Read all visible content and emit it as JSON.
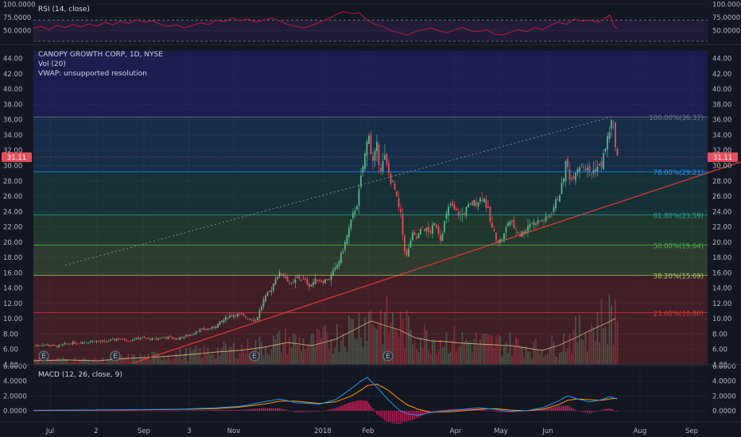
{
  "colors": {
    "background": "#131722",
    "up": "#53b987",
    "down": "#eb4d5c",
    "trendline": "#e53935",
    "rsi_line": "#b71c3a",
    "macd_line": "#2196f3",
    "signal_line": "#ff9800",
    "price_badge": "#eb4d5c"
  },
  "chart_data": [
    {
      "type": "line",
      "panel": "rsi",
      "title": "RSI (14, close)",
      "yticks": [
        "100.0000",
        "75.0000",
        "50.0000"
      ],
      "ylim": [
        30,
        105
      ],
      "band_levels": [
        70,
        30
      ],
      "points": [
        [
          0,
          55
        ],
        [
          10,
          58
        ],
        [
          20,
          52
        ],
        [
          30,
          60
        ],
        [
          40,
          56
        ],
        [
          50,
          62
        ],
        [
          60,
          57
        ],
        [
          70,
          63
        ],
        [
          80,
          59
        ],
        [
          90,
          66
        ],
        [
          100,
          61
        ],
        [
          110,
          68
        ],
        [
          120,
          64
        ],
        [
          130,
          71
        ],
        [
          140,
          66
        ],
        [
          150,
          69
        ],
        [
          160,
          62
        ],
        [
          170,
          58
        ],
        [
          180,
          61
        ],
        [
          190,
          55
        ],
        [
          200,
          60
        ],
        [
          210,
          65
        ],
        [
          220,
          62
        ],
        [
          230,
          70
        ],
        [
          240,
          67
        ],
        [
          250,
          74
        ],
        [
          260,
          69
        ],
        [
          270,
          72
        ],
        [
          280,
          66
        ],
        [
          290,
          70
        ],
        [
          300,
          74
        ],
        [
          310,
          68
        ],
        [
          320,
          62
        ],
        [
          330,
          58
        ],
        [
          340,
          55
        ],
        [
          350,
          60
        ],
        [
          360,
          66
        ],
        [
          370,
          72
        ],
        [
          380,
          80
        ],
        [
          390,
          86
        ],
        [
          400,
          82
        ],
        [
          410,
          84
        ],
        [
          420,
          70
        ],
        [
          430,
          62
        ],
        [
          440,
          58
        ],
        [
          450,
          50
        ],
        [
          460,
          46
        ],
        [
          470,
          42
        ],
        [
          480,
          48
        ],
        [
          490,
          52
        ],
        [
          500,
          55
        ],
        [
          510,
          50
        ],
        [
          520,
          46
        ],
        [
          530,
          52
        ],
        [
          540,
          56
        ],
        [
          550,
          50
        ],
        [
          560,
          48
        ],
        [
          570,
          52
        ],
        [
          580,
          44
        ],
        [
          590,
          42
        ],
        [
          600,
          47
        ],
        [
          610,
          52
        ],
        [
          620,
          48
        ],
        [
          630,
          56
        ],
        [
          640,
          52
        ],
        [
          650,
          60
        ],
        [
          660,
          66
        ],
        [
          670,
          62
        ],
        [
          680,
          72
        ],
        [
          690,
          68
        ],
        [
          700,
          70
        ],
        [
          710,
          66
        ],
        [
          720,
          74
        ],
        [
          725,
          80
        ],
        [
          730,
          60
        ],
        [
          735,
          53
        ]
      ]
    },
    {
      "type": "candlestick",
      "panel": "price",
      "title": "CANOPY GROWTH CORP, 1D, NYSE",
      "ylim": [
        4,
        45
      ],
      "yticks": [
        44,
        42,
        40,
        38,
        36,
        34,
        32,
        30,
        28,
        26,
        24,
        22,
        20,
        18,
        16,
        14,
        12,
        10,
        8,
        6,
        4
      ],
      "ytick_labels": [
        "44.00",
        "42.00",
        "40.00",
        "38.00",
        "36.00",
        "34.00",
        "32.00",
        "30.00",
        "28.00",
        "26.00",
        "24.00",
        "22.00",
        "20.00",
        "18.00",
        "16.00",
        "14.00",
        "12.00",
        "10.00",
        "8.00",
        "6.00",
        "4.00"
      ],
      "last_price_label": "31.11",
      "last_price": 31.11,
      "close_path": [
        [
          0,
          6.5
        ],
        [
          15,
          6.6
        ],
        [
          30,
          6.4
        ],
        [
          45,
          6.8
        ],
        [
          60,
          6.9
        ],
        [
          75,
          7.1
        ],
        [
          90,
          7.0
        ],
        [
          105,
          7.4
        ],
        [
          120,
          7.2
        ],
        [
          135,
          7.5
        ],
        [
          150,
          7.3
        ],
        [
          165,
          7.6
        ],
        [
          180,
          7.4
        ],
        [
          195,
          7.8
        ],
        [
          205,
          8.4
        ],
        [
          215,
          8.6
        ],
        [
          225,
          8.8
        ],
        [
          235,
          9.5
        ],
        [
          245,
          10.3
        ],
        [
          255,
          10.6
        ],
        [
          262,
          10.4
        ],
        [
          270,
          10.1
        ],
        [
          280,
          9.8
        ],
        [
          290,
          12.5
        ],
        [
          300,
          14.0
        ],
        [
          305,
          15.5
        ],
        [
          312,
          16.0
        ],
        [
          318,
          15.3
        ],
        [
          325,
          14.3
        ],
        [
          332,
          15.4
        ],
        [
          340,
          15.1
        ],
        [
          348,
          14.3
        ],
        [
          356,
          15.2
        ],
        [
          364,
          14.9
        ],
        [
          372,
          15.3
        ],
        [
          380,
          16.5
        ],
        [
          388,
          18.5
        ],
        [
          395,
          21.0
        ],
        [
          402,
          23.5
        ],
        [
          408,
          25.5
        ],
        [
          413,
          29.0
        ],
        [
          418,
          32.0
        ],
        [
          422,
          34.5
        ],
        [
          426,
          30.0
        ],
        [
          432,
          32.5
        ],
        [
          436,
          29.5
        ],
        [
          442,
          31.0
        ],
        [
          448,
          28.5
        ],
        [
          454,
          27.0
        ],
        [
          458,
          25.0
        ],
        [
          462,
          23.5
        ],
        [
          466,
          19.5
        ],
        [
          470,
          18.0
        ],
        [
          476,
          21.0
        ],
        [
          482,
          20.5
        ],
        [
          490,
          22.0
        ],
        [
          498,
          21.2
        ],
        [
          506,
          22.5
        ],
        [
          512,
          20.5
        ],
        [
          518,
          23.0
        ],
        [
          524,
          25.0
        ],
        [
          530,
          24.0
        ],
        [
          538,
          23.5
        ],
        [
          546,
          24.5
        ],
        [
          552,
          25.0
        ],
        [
          560,
          25.5
        ],
        [
          566,
          26.0
        ],
        [
          572,
          24.0
        ],
        [
          576,
          22.0
        ],
        [
          580,
          21.0
        ],
        [
          586,
          20.0
        ],
        [
          592,
          21.0
        ],
        [
          598,
          23.0
        ],
        [
          604,
          22.0
        ],
        [
          612,
          21.0
        ],
        [
          618,
          21.5
        ],
        [
          624,
          22.5
        ],
        [
          630,
          22.5
        ],
        [
          638,
          22.8
        ],
        [
          646,
          23.0
        ],
        [
          652,
          24.0
        ],
        [
          658,
          25.5
        ],
        [
          664,
          27.0
        ],
        [
          670,
          30.5
        ],
        [
          676,
          28.0
        ],
        [
          682,
          29.5
        ],
        [
          690,
          30.5
        ],
        [
          696,
          29.5
        ],
        [
          702,
          29.0
        ],
        [
          708,
          29.8
        ],
        [
          714,
          30.0
        ],
        [
          720,
          32.5
        ],
        [
          724,
          34.5
        ],
        [
          728,
          36.0
        ],
        [
          731,
          34.0
        ],
        [
          734,
          31.11
        ]
      ],
      "volume_path": [
        [
          0,
          0.5
        ],
        [
          40,
          0.6
        ],
        [
          80,
          0.5
        ],
        [
          120,
          0.8
        ],
        [
          160,
          1.0
        ],
        [
          200,
          1.3
        ],
        [
          230,
          1.6
        ],
        [
          260,
          1.8
        ],
        [
          290,
          2.2
        ],
        [
          320,
          2.8
        ],
        [
          350,
          2.4
        ],
        [
          380,
          3.2
        ],
        [
          400,
          4.2
        ],
        [
          415,
          5.0
        ],
        [
          425,
          5.5
        ],
        [
          440,
          5.0
        ],
        [
          460,
          4.4
        ],
        [
          480,
          3.4
        ],
        [
          500,
          3.0
        ],
        [
          520,
          2.9
        ],
        [
          540,
          2.7
        ],
        [
          560,
          2.6
        ],
        [
          580,
          2.5
        ],
        [
          600,
          2.4
        ],
        [
          620,
          2.1
        ],
        [
          640,
          1.8
        ],
        [
          660,
          2.4
        ],
        [
          680,
          3.3
        ],
        [
          700,
          4.3
        ],
        [
          720,
          5.2
        ],
        [
          732,
          5.8
        ]
      ],
      "trendline": {
        "from": [
          125,
          4.2
        ],
        "to": [
          932,
          30.5
        ]
      },
      "channel_line": {
        "from": [
          40,
          17.0
        ],
        "to": [
          728,
          36.4
        ]
      },
      "earnings_markers": [
        {
          "x": 55,
          "label": "E"
        },
        {
          "x": 145,
          "label": "E"
        },
        {
          "x": 320,
          "label": "E"
        },
        {
          "x": 488,
          "label": "E"
        }
      ],
      "legend": [
        "Vol (20)",
        "VWAP: unsupported resolution"
      ],
      "fibonacci": [
        {
          "level": 100.0,
          "value": 36.37,
          "label": "100.00%(36.37)",
          "color": "#787b86"
        },
        {
          "level": 78.6,
          "value": 29.21,
          "label": "78.60%(29.21)",
          "color": "#2196f3"
        },
        {
          "level": 61.8,
          "value": 23.59,
          "label": "61.80%(23.59)",
          "color": "#26a69a"
        },
        {
          "level": 50.0,
          "value": 19.64,
          "label": "50.00%(19.64)",
          "color": "#4caf50"
        },
        {
          "level": 38.2,
          "value": 15.69,
          "label": "38.20%(15.69)",
          "color": "#9ccc65"
        },
        {
          "level": 23.6,
          "value": 10.8,
          "label": "23.60%(10.80)",
          "color": "#e53935"
        }
      ]
    },
    {
      "type": "line",
      "panel": "macd",
      "title": "MACD (12, 26, close, 9)",
      "yticks": [
        "6.0000",
        "4.0000",
        "2.0000",
        "0.0000"
      ],
      "ylim": [
        -1.5,
        6.0
      ],
      "series": [
        {
          "name": "MACD",
          "points": [
            [
              0,
              0.05
            ],
            [
              60,
              0.1
            ],
            [
              120,
              0.15
            ],
            [
              180,
              0.2
            ],
            [
              230,
              0.4
            ],
            [
              260,
              0.6
            ],
            [
              290,
              1.2
            ],
            [
              310,
              1.6
            ],
            [
              330,
              1.1
            ],
            [
              360,
              0.9
            ],
            [
              380,
              1.5
            ],
            [
              400,
              3.0
            ],
            [
              412,
              4.0
            ],
            [
              420,
              4.5
            ],
            [
              432,
              3.2
            ],
            [
              446,
              1.5
            ],
            [
              460,
              0.1
            ],
            [
              470,
              -0.4
            ],
            [
              484,
              -0.6
            ],
            [
              500,
              -0.2
            ],
            [
              530,
              0.1
            ],
            [
              560,
              0.4
            ],
            [
              580,
              0.2
            ],
            [
              600,
              -0.1
            ],
            [
              620,
              0.0
            ],
            [
              640,
              0.4
            ],
            [
              660,
              1.3
            ],
            [
              672,
              2.0
            ],
            [
              684,
              1.6
            ],
            [
              700,
              1.2
            ],
            [
              715,
              1.5
            ],
            [
              725,
              1.9
            ],
            [
              734,
              1.6
            ]
          ]
        },
        {
          "name": "Signal",
          "points": [
            [
              0,
              0.05
            ],
            [
              60,
              0.08
            ],
            [
              120,
              0.12
            ],
            [
              180,
              0.18
            ],
            [
              230,
              0.3
            ],
            [
              260,
              0.5
            ],
            [
              290,
              0.9
            ],
            [
              310,
              1.3
            ],
            [
              330,
              1.3
            ],
            [
              360,
              1.0
            ],
            [
              380,
              1.2
            ],
            [
              400,
              2.0
            ],
            [
              412,
              2.8
            ],
            [
              420,
              3.4
            ],
            [
              432,
              3.6
            ],
            [
              446,
              2.8
            ],
            [
              460,
              1.6
            ],
            [
              470,
              0.8
            ],
            [
              484,
              0.2
            ],
            [
              500,
              -0.2
            ],
            [
              530,
              -0.1
            ],
            [
              560,
              0.2
            ],
            [
              580,
              0.3
            ],
            [
              600,
              0.1
            ],
            [
              620,
              0.0
            ],
            [
              640,
              0.2
            ],
            [
              660,
              0.8
            ],
            [
              672,
              1.4
            ],
            [
              684,
              1.6
            ],
            [
              700,
              1.5
            ],
            [
              715,
              1.4
            ],
            [
              725,
              1.6
            ],
            [
              734,
              1.7
            ]
          ]
        }
      ]
    }
  ],
  "x_axis": {
    "labels": [
      {
        "x": 63,
        "text": "Jul"
      },
      {
        "x": 121,
        "text": "2"
      },
      {
        "x": 181,
        "text": "Sep"
      },
      {
        "x": 238,
        "text": "3"
      },
      {
        "x": 294,
        "text": "Nov"
      },
      {
        "x": 406,
        "text": "2018"
      },
      {
        "x": 463,
        "text": "Feb"
      },
      {
        "x": 573,
        "text": "Apr"
      },
      {
        "x": 630,
        "text": "May"
      },
      {
        "x": 689,
        "text": "Jun"
      },
      {
        "x": 805,
        "text": "Aug"
      },
      {
        "x": 870,
        "text": "Sep"
      }
    ]
  }
}
